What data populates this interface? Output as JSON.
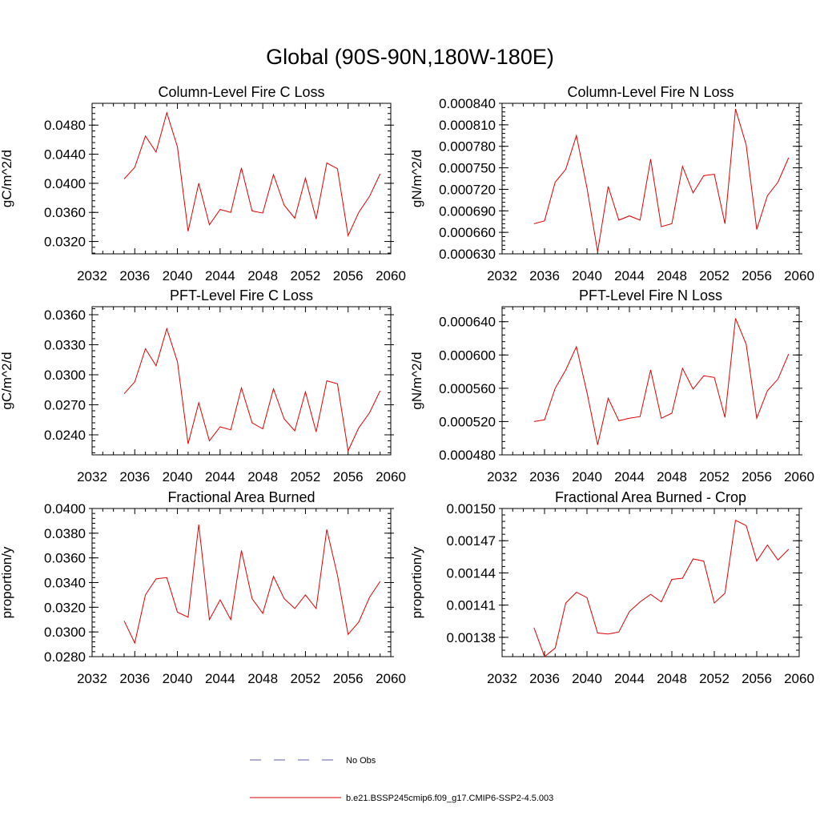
{
  "figure": {
    "title": "Global (90S-90N,180W-180E)"
  },
  "legend": {
    "items": [
      {
        "label": "No Obs",
        "color": "#5a5aa8",
        "style": "dashed"
      },
      {
        "label": "b.e21.BSSP245cmip6.f09_g17.CMIP6-SSP2-4.5.003",
        "color": "#e00000",
        "style": "solid"
      }
    ]
  },
  "chart_data": [
    {
      "type": "line",
      "title": "Column-Level Fire C Loss",
      "ylabel": "gC/m^2/d",
      "xlim": [
        2032,
        2060
      ],
      "ylim": [
        0.0303,
        0.051
      ],
      "xticks": [
        "2032",
        "2036",
        "2040",
        "2044",
        "2048",
        "2052",
        "2056",
        "2060"
      ],
      "yticks": [
        "0.0320",
        "0.0360",
        "0.0400",
        "0.0440",
        "0.0480"
      ],
      "color": "#e00000",
      "x": [
        2035,
        2036,
        2037,
        2038,
        2039,
        2040,
        2041,
        2042,
        2043,
        2044,
        2045,
        2046,
        2047,
        2048,
        2049,
        2050,
        2051,
        2052,
        2053,
        2054,
        2055,
        2056,
        2057,
        2058,
        2059
      ],
      "y": [
        0.0406,
        0.0422,
        0.0465,
        0.0443,
        0.0497,
        0.045,
        0.0334,
        0.04,
        0.0343,
        0.0364,
        0.036,
        0.0421,
        0.0362,
        0.0359,
        0.0412,
        0.037,
        0.0352,
        0.0407,
        0.0351,
        0.0428,
        0.042,
        0.0328,
        0.036,
        0.0382,
        0.0413
      ]
    },
    {
      "type": "line",
      "title": "Column-Level Fire N Loss",
      "ylabel": "gN/m^2/d",
      "xlim": [
        2032,
        2060
      ],
      "ylim": [
        0.00063,
        0.00084
      ],
      "xticks": [
        "2032",
        "2036",
        "2040",
        "2044",
        "2048",
        "2052",
        "2056",
        "2060"
      ],
      "yticks": [
        "0.000630",
        "0.000660",
        "0.000690",
        "0.000720",
        "0.000750",
        "0.000780",
        "0.000810",
        "0.000840"
      ],
      "color": "#e00000",
      "x": [
        2035,
        2036,
        2037,
        2038,
        2039,
        2040,
        2041,
        2042,
        2043,
        2044,
        2045,
        2046,
        2047,
        2048,
        2049,
        2050,
        2051,
        2052,
        2053,
        2054,
        2055,
        2056,
        2057,
        2058,
        2059
      ],
      "y": [
        0.000672,
        0.000676,
        0.00073,
        0.000748,
        0.000795,
        0.000722,
        0.000633,
        0.000724,
        0.000677,
        0.000683,
        0.000677,
        0.000762,
        0.000668,
        0.000672,
        0.000752,
        0.000715,
        0.000739,
        0.000741,
        0.000672,
        0.000832,
        0.000782,
        0.000664,
        0.000711,
        0.00073,
        0.000764
      ]
    },
    {
      "type": "line",
      "title": "PFT-Level Fire C Loss",
      "ylabel": "gC/m^2/d",
      "xlim": [
        2032,
        2060
      ],
      "ylim": [
        0.022,
        0.0368
      ],
      "xticks": [
        "2032",
        "2036",
        "2040",
        "2044",
        "2048",
        "2052",
        "2056",
        "2060"
      ],
      "yticks": [
        "0.0240",
        "0.0270",
        "0.0300",
        "0.0330",
        "0.0360"
      ],
      "color": "#e00000",
      "x": [
        2035,
        2036,
        2037,
        2038,
        2039,
        2040,
        2041,
        2042,
        2043,
        2044,
        2045,
        2046,
        2047,
        2048,
        2049,
        2050,
        2051,
        2052,
        2053,
        2054,
        2055,
        2056,
        2057,
        2058,
        2059
      ],
      "y": [
        0.0281,
        0.0293,
        0.0326,
        0.0309,
        0.0346,
        0.0313,
        0.0231,
        0.0272,
        0.0234,
        0.0248,
        0.0245,
        0.0287,
        0.0252,
        0.0246,
        0.0286,
        0.0256,
        0.0244,
        0.0283,
        0.0243,
        0.0294,
        0.0291,
        0.0224,
        0.0247,
        0.0262,
        0.0284
      ]
    },
    {
      "type": "line",
      "title": "PFT-Level Fire N Loss",
      "ylabel": "gN/m^2/d",
      "xlim": [
        2032,
        2060
      ],
      "ylim": [
        0.00048,
        0.000658
      ],
      "xticks": [
        "2032",
        "2036",
        "2040",
        "2044",
        "2048",
        "2052",
        "2056",
        "2060"
      ],
      "yticks": [
        "0.000480",
        "0.000520",
        "0.000560",
        "0.000600",
        "0.000640"
      ],
      "color": "#e00000",
      "x": [
        2035,
        2036,
        2037,
        2038,
        2039,
        2040,
        2041,
        2042,
        2043,
        2044,
        2045,
        2046,
        2047,
        2048,
        2049,
        2050,
        2051,
        2052,
        2053,
        2054,
        2055,
        2056,
        2057,
        2058,
        2059
      ],
      "y": [
        0.00052,
        0.000522,
        0.00056,
        0.000582,
        0.00061,
        0.000555,
        0.000492,
        0.000548,
        0.000521,
        0.000524,
        0.000526,
        0.000582,
        0.000524,
        0.00053,
        0.000584,
        0.000559,
        0.000575,
        0.000573,
        0.000525,
        0.000644,
        0.000613,
        0.000524,
        0.000557,
        0.000571,
        0.000601
      ]
    },
    {
      "type": "line",
      "title": "Fractional Area Burned",
      "ylabel": "proportion/y",
      "xlim": [
        2032,
        2060
      ],
      "ylim": [
        0.028,
        0.04
      ],
      "xticks": [
        "2032",
        "2036",
        "2040",
        "2044",
        "2048",
        "2052",
        "2056",
        "2060"
      ],
      "yticks": [
        "0.0280",
        "0.0300",
        "0.0320",
        "0.0340",
        "0.0360",
        "0.0380",
        "0.0400"
      ],
      "color": "#e00000",
      "x": [
        2035,
        2036,
        2037,
        2038,
        2039,
        2040,
        2041,
        2042,
        2043,
        2044,
        2045,
        2046,
        2047,
        2048,
        2049,
        2050,
        2051,
        2052,
        2053,
        2054,
        2055,
        2056,
        2057,
        2058,
        2059
      ],
      "y": [
        0.0309,
        0.0291,
        0.033,
        0.0343,
        0.0344,
        0.0316,
        0.0312,
        0.0387,
        0.031,
        0.0326,
        0.031,
        0.0366,
        0.0327,
        0.0315,
        0.0345,
        0.0327,
        0.0319,
        0.033,
        0.0319,
        0.0383,
        0.0346,
        0.0298,
        0.0308,
        0.0328,
        0.0341
      ]
    },
    {
      "type": "line",
      "title": "Fractional Area Burned - Crop",
      "ylabel": "proportion/y",
      "xlim": [
        2032,
        2060
      ],
      "ylim": [
        0.001362,
        0.0015
      ],
      "xticks": [
        "2032",
        "2036",
        "2040",
        "2044",
        "2048",
        "2052",
        "2056",
        "2060"
      ],
      "yticks": [
        "0.00138",
        "0.00141",
        "0.00144",
        "0.00147",
        "0.00150"
      ],
      "color": "#e00000",
      "x": [
        2035,
        2036,
        2037,
        2038,
        2039,
        2040,
        2041,
        2042,
        2043,
        2044,
        2045,
        2046,
        2047,
        2048,
        2049,
        2050,
        2051,
        2052,
        2053,
        2054,
        2055,
        2056,
        2057,
        2058,
        2059
      ],
      "y": [
        0.001389,
        0.001362,
        0.00137,
        0.001412,
        0.001422,
        0.001417,
        0.001384,
        0.001383,
        0.001385,
        0.001404,
        0.001413,
        0.00142,
        0.001413,
        0.001434,
        0.001435,
        0.001453,
        0.001451,
        0.001412,
        0.001421,
        0.001489,
        0.001484,
        0.001451,
        0.001466,
        0.001452,
        0.001462
      ]
    }
  ]
}
